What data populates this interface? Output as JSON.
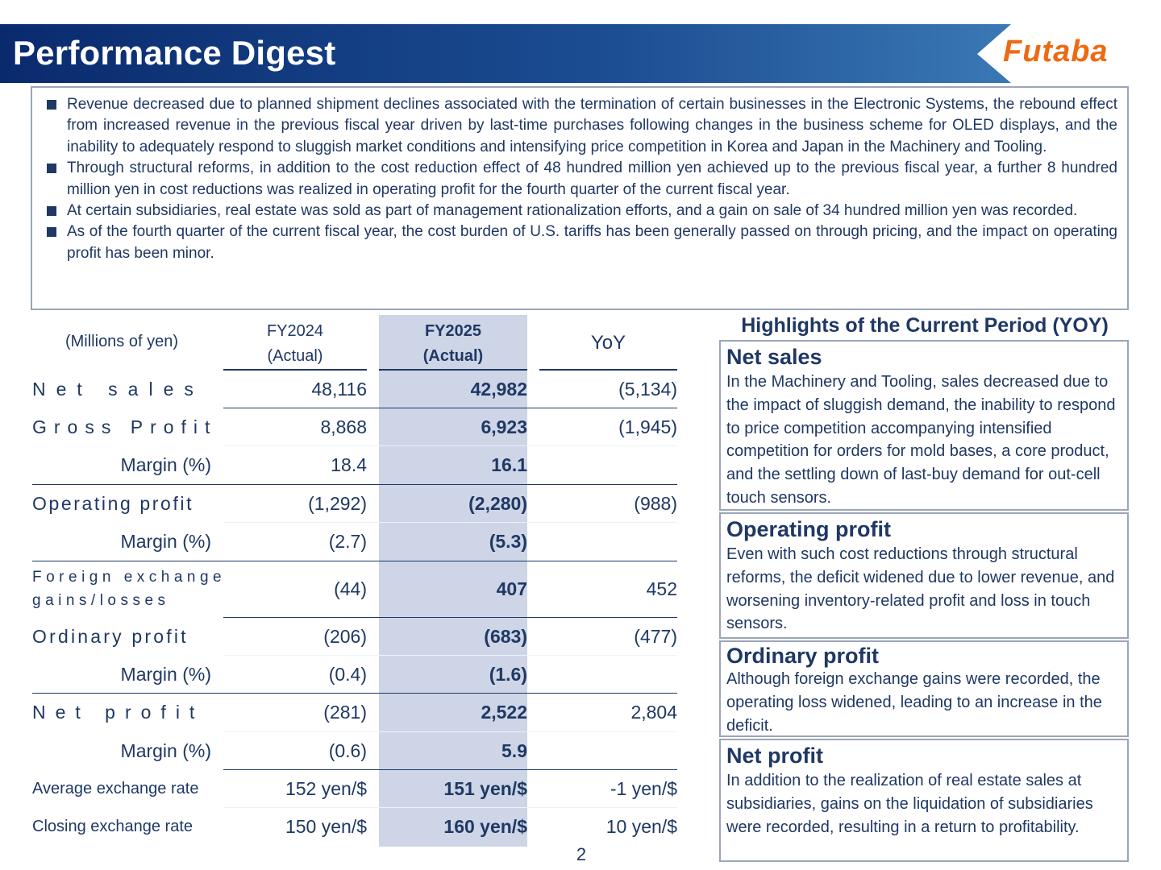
{
  "header": {
    "title": "Performance Digest",
    "logo_text": "Futaba",
    "colors": {
      "title_bar": "#0a2a6e",
      "logo": "#ee6a12"
    }
  },
  "summary": {
    "bullets": [
      "Revenue decreased due to planned shipment declines associated with the termination of certain businesses in the Electronic Systems, the rebound effect from increased revenue in the previous fiscal year driven by last-time purchases following changes in the business scheme for OLED displays, and the inability to adequately respond to sluggish market conditions and intensifying price competition in Korea and Japan in the Machinery and Tooling.",
      "Through structural reforms, in addition to the cost reduction effect of 48 hundred million yen achieved up to the previous fiscal year, a further 8 hundred million yen in cost reductions was realized in operating profit for the fourth quarter of the current fiscal year.",
      "At certain subsidiaries, real estate was sold as part of management rationalization efforts, and a gain on sale of 34 hundred million yen was recorded.",
      "As of the fourth quarter of the current fiscal year, the cost burden of U.S. tariffs has been generally passed on through pricing, and the impact on operating profit has been minor."
    ]
  },
  "table": {
    "unit_label": "(Millions of yen)",
    "col_fy2024": {
      "line1": "FY2024",
      "line2": "(Actual)"
    },
    "col_fy2025": {
      "line1": "FY2025",
      "line2": "(Actual)"
    },
    "col_yoy": "YoY",
    "highlight_color": "#cdd5e6",
    "rows": [
      {
        "label": "Net sales",
        "fy2024": "48,116",
        "fy2025": "42,982",
        "yoy": "(5,134)"
      },
      {
        "label": "Gross Profit",
        "fy2024": "8,868",
        "fy2025": "6,923",
        "yoy": "(1,945)"
      },
      {
        "label": "Margin (%)",
        "fy2024": "18.4",
        "fy2025": "16.1",
        "yoy": ""
      },
      {
        "label": "Operating profit",
        "fy2024": "(1,292)",
        "fy2025": "(2,280)",
        "yoy": "(988)"
      },
      {
        "label": "Margin (%)",
        "fy2024": "(2.7)",
        "fy2025": "(5.3)",
        "yoy": ""
      },
      {
        "label_line1": "Foreign exchange",
        "label_line2": "gains/losses",
        "fy2024": "(44)",
        "fy2025": "407",
        "yoy": "452"
      },
      {
        "label": "Ordinary profit",
        "fy2024": "(206)",
        "fy2025": "(683)",
        "yoy": "(477)"
      },
      {
        "label": "Margin (%)",
        "fy2024": "(0.4)",
        "fy2025": "(1.6)",
        "yoy": ""
      },
      {
        "label": "Net profit",
        "fy2024": "(281)",
        "fy2025": "2,522",
        "yoy": "2,804"
      },
      {
        "label": "Margin (%)",
        "fy2024": "(0.6)",
        "fy2025": "5.9",
        "yoy": ""
      },
      {
        "label": "Average exchange rate",
        "fy2024": "152 yen/$",
        "fy2025": "151 yen/$",
        "yoy": "-1 yen/$"
      },
      {
        "label": "Closing exchange rate",
        "fy2024": "150 yen/$",
        "fy2025": "160 yen/$",
        "yoy": "10 yen/$"
      }
    ]
  },
  "highlights": {
    "title": "Highlights of the Current Period (YOY)",
    "cards": [
      {
        "title": "Net sales",
        "text": "In the Machinery and Tooling, sales decreased due to the impact of sluggish demand, the inability to respond to price competition accompanying intensified competition for orders for mold bases, a core product, and the settling down of last-buy demand for out-cell touch sensors."
      },
      {
        "title": "Operating profit",
        "text": "Even with such cost reductions through structural reforms, the deficit widened due to lower revenue, and worsening inventory-related profit and loss in touch sensors."
      },
      {
        "title": "Ordinary profit",
        "text": "Although foreign exchange gains were recorded, the operating loss widened, leading to an increase in the deficit."
      },
      {
        "title": "Net profit",
        "text": "In addition to the realization of real estate sales at subsidiaries, gains on the liquidation of subsidiaries were recorded, resulting in a return to profitability."
      }
    ]
  },
  "page_number": "2"
}
